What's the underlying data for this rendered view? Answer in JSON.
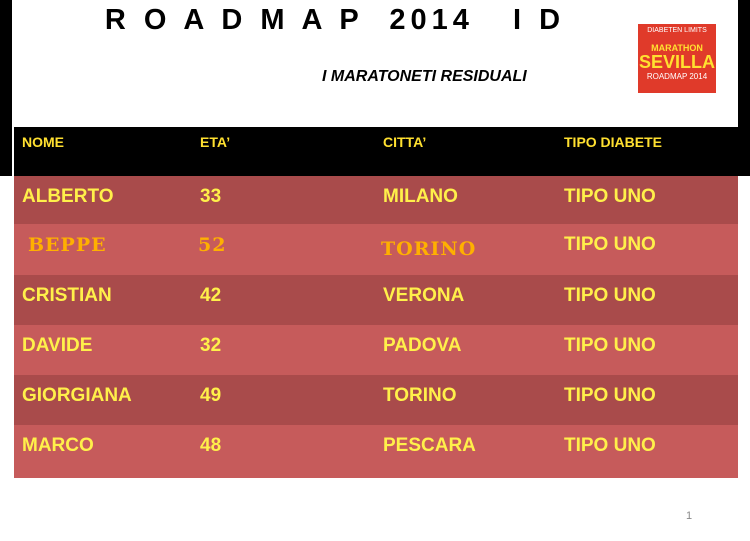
{
  "header": {
    "title": "R O A D M A P  2014   I D",
    "subtitle": "I MARATONETI RESIDUALI"
  },
  "logo": {
    "lines": [
      "DIABETEN LIMITS",
      "MARATHON",
      "SEVILLA",
      "ROADMAP 2014"
    ]
  },
  "table": {
    "columns": [
      "NOME",
      "ETA’",
      "CITTA’",
      "TIPO DIABETE"
    ],
    "rows": [
      [
        "ALBERTO",
        "33",
        "MILANO",
        "TIPO UNO"
      ],
      [
        "BEPPE",
        "52",
        "TORINO",
        "TIPO UNO"
      ],
      [
        "CRISTIAN",
        "42",
        "VERONA",
        "TIPO UNO"
      ],
      [
        "DAVIDE",
        "32",
        "PADOVA",
        "TIPO UNO"
      ],
      [
        "GIORGIANA",
        "49",
        "TORINO",
        "TIPO UNO"
      ],
      [
        "MARCO",
        "48",
        "PESCARA",
        "TIPO UNO"
      ]
    ]
  },
  "page_number": "1"
}
